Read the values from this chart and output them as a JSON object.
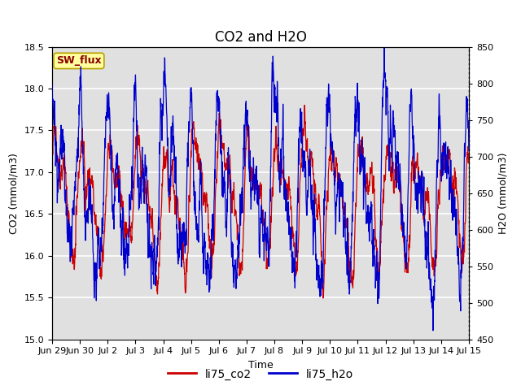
{
  "title": "CO2 and H2O",
  "xlabel": "Time",
  "ylabel_left": "CO2 (mmol/m3)",
  "ylabel_right": "H2O (mmol/m3)",
  "ylim_left": [
    15.0,
    18.5
  ],
  "ylim_right": [
    450,
    850
  ],
  "yticks_left": [
    15.0,
    15.5,
    16.0,
    16.5,
    17.0,
    17.5,
    18.0,
    18.5
  ],
  "yticks_right": [
    450,
    500,
    550,
    600,
    650,
    700,
    750,
    800,
    850
  ],
  "annotation_text": "SW_flux",
  "background_color": "#ffffff",
  "plot_bg_color": "#e0e0e0",
  "line_color_co2": "#cc0000",
  "line_color_h2o": "#0000cc",
  "legend_label_co2": "li75_co2",
  "legend_label_h2o": "li75_h2o",
  "grid_color": "#ffffff",
  "title_fontsize": 12,
  "label_fontsize": 9,
  "tick_fontsize": 8,
  "xlim": [
    0,
    15
  ],
  "n_days": 15,
  "ppd": 144
}
